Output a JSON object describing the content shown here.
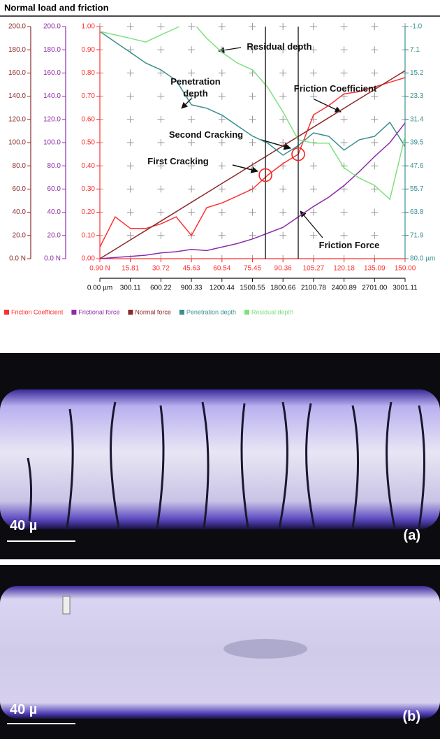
{
  "chart_data": {
    "type": "line",
    "title": "Normal load and friction",
    "x": [
      0.9,
      8.36,
      15.81,
      23.27,
      30.72,
      38.18,
      45.63,
      53.09,
      60.54,
      68.0,
      75.45,
      82.91,
      90.36,
      97.82,
      105.27,
      112.73,
      120.18,
      127.64,
      135.09,
      142.55,
      150.0
    ],
    "xlim": [
      0.9,
      150.0
    ],
    "xticks": [
      {
        "value": 0.9,
        "label": "0.90 N"
      },
      15.81,
      30.72,
      45.63,
      60.54,
      75.45,
      90.36,
      105.27,
      120.18,
      135.09,
      {
        "value": 150.0,
        "label": "150.00"
      }
    ],
    "x2lim": [
      0,
      3001.11
    ],
    "x2ticks": [
      {
        "value": 0,
        "label": "0.00 µm"
      },
      300.11,
      600.22,
      900.33,
      1200.44,
      1500.55,
      1800.66,
      2100.78,
      2400.89,
      {
        "value": 2701.0,
        "label": "2701.00"
      },
      3001.11
    ],
    "ylim": [
      0,
      200
    ],
    "yticks": [
      {
        "value": 0,
        "label": "0.0 N"
      },
      {
        "value": 20,
        "label": "20.0"
      },
      {
        "value": 40,
        "label": "40.0"
      },
      {
        "value": 60,
        "label": "60.0"
      },
      {
        "value": 80,
        "label": "80.0"
      },
      {
        "value": 100,
        "label": "100.0"
      },
      {
        "value": 120,
        "label": "120.0"
      },
      {
        "value": 140,
        "label": "140.0"
      },
      {
        "value": 160,
        "label": "160.0"
      },
      {
        "value": 180,
        "label": "180.0"
      },
      {
        "value": 200,
        "label": "200.0"
      }
    ],
    "y3lim": [
      0,
      1
    ],
    "y3ticks": [
      {
        "value": 0,
        "label": "0.00"
      },
      {
        "value": 0.1,
        "label": "0.10"
      },
      {
        "value": 0.2,
        "label": "0.20"
      },
      {
        "value": 0.3,
        "label": "0.30"
      },
      {
        "value": 0.4,
        "label": "0.40"
      },
      {
        "value": 0.5,
        "label": "0.50"
      },
      {
        "value": 0.6,
        "label": "0.60"
      },
      {
        "value": 0.7,
        "label": "0.70"
      },
      {
        "value": 0.8,
        "label": "0.80"
      },
      {
        "value": 0.9,
        "label": "0.90"
      },
      {
        "value": 1,
        "label": "1.00"
      }
    ],
    "y2lim": [
      80.0,
      -1.0
    ],
    "y2ticks": [
      {
        "value": -1.0,
        "label": "-1.0"
      },
      7.1,
      15.2,
      23.3,
      31.4,
      39.5,
      47.6,
      55.7,
      63.8,
      71.9,
      {
        "value": 80.0,
        "label": "80.0 µm"
      }
    ],
    "grid": "plus",
    "series": [
      {
        "name": "Friction Coefficient",
        "color": "#ff3030",
        "axis": "y3",
        "values": [
          0.05,
          0.18,
          0.13,
          0.13,
          0.15,
          0.18,
          0.1,
          0.22,
          0.24,
          0.27,
          0.3,
          0.36,
          0.41,
          0.45,
          0.62,
          0.66,
          0.71,
          0.72,
          0.74,
          0.76,
          0.78
        ]
      },
      {
        "name": "Frictional force",
        "color": "#8e2aa8",
        "axis": "y",
        "values": [
          0,
          1,
          2,
          3,
          5,
          6,
          8,
          7,
          10,
          13,
          17,
          22,
          27,
          36,
          45,
          53,
          63,
          75,
          88,
          100,
          117
        ]
      },
      {
        "name": "Normal force",
        "color": "#8b2a2a",
        "axis": "y",
        "values": [
          0,
          8.1,
          16.2,
          24.3,
          32.4,
          40.5,
          48.6,
          56.7,
          64.8,
          72.9,
          81,
          89.1,
          97.2,
          105.3,
          113.4,
          121.5,
          129.6,
          137.7,
          145.8,
          153.9,
          162
        ]
      },
      {
        "name": "Penetration depth",
        "color": "#3a8f8f",
        "axis": "y2",
        "values": [
          0.7,
          4.4,
          8.0,
          11.7,
          14.1,
          17.8,
          26.3,
          27.5,
          29.9,
          33.6,
          37.2,
          39.7,
          43.9,
          40.5,
          36.1,
          37.3,
          42.1,
          38.5,
          37.3,
          32.4,
          40.9
        ]
      },
      {
        "name": "Residual depth",
        "color": "#7fe07f",
        "axis": "y2",
        "values": [
          0.7,
          1.9,
          3.1,
          4.4,
          1.9,
          -0.5,
          -3.0,
          3.1,
          8.0,
          11.7,
          14.1,
          20.2,
          28.8,
          38.5,
          39.7,
          39.7,
          48.3,
          51.9,
          54.4,
          59.3,
          37.2
        ]
      }
    ],
    "events": [
      {
        "label": "First Cracking",
        "x": 81.8,
        "y": 0.36
      },
      {
        "label": "Second Cracking",
        "x": 97.8,
        "y": 0.45
      }
    ],
    "annotations": [
      "Residual depth",
      "Penetration depth",
      "Friction Coefficient",
      "Friction Force"
    ]
  },
  "panels": [
    {
      "scale": "40 µ",
      "label": "(a)"
    },
    {
      "scale": "40 µ",
      "label": "(b)"
    }
  ]
}
